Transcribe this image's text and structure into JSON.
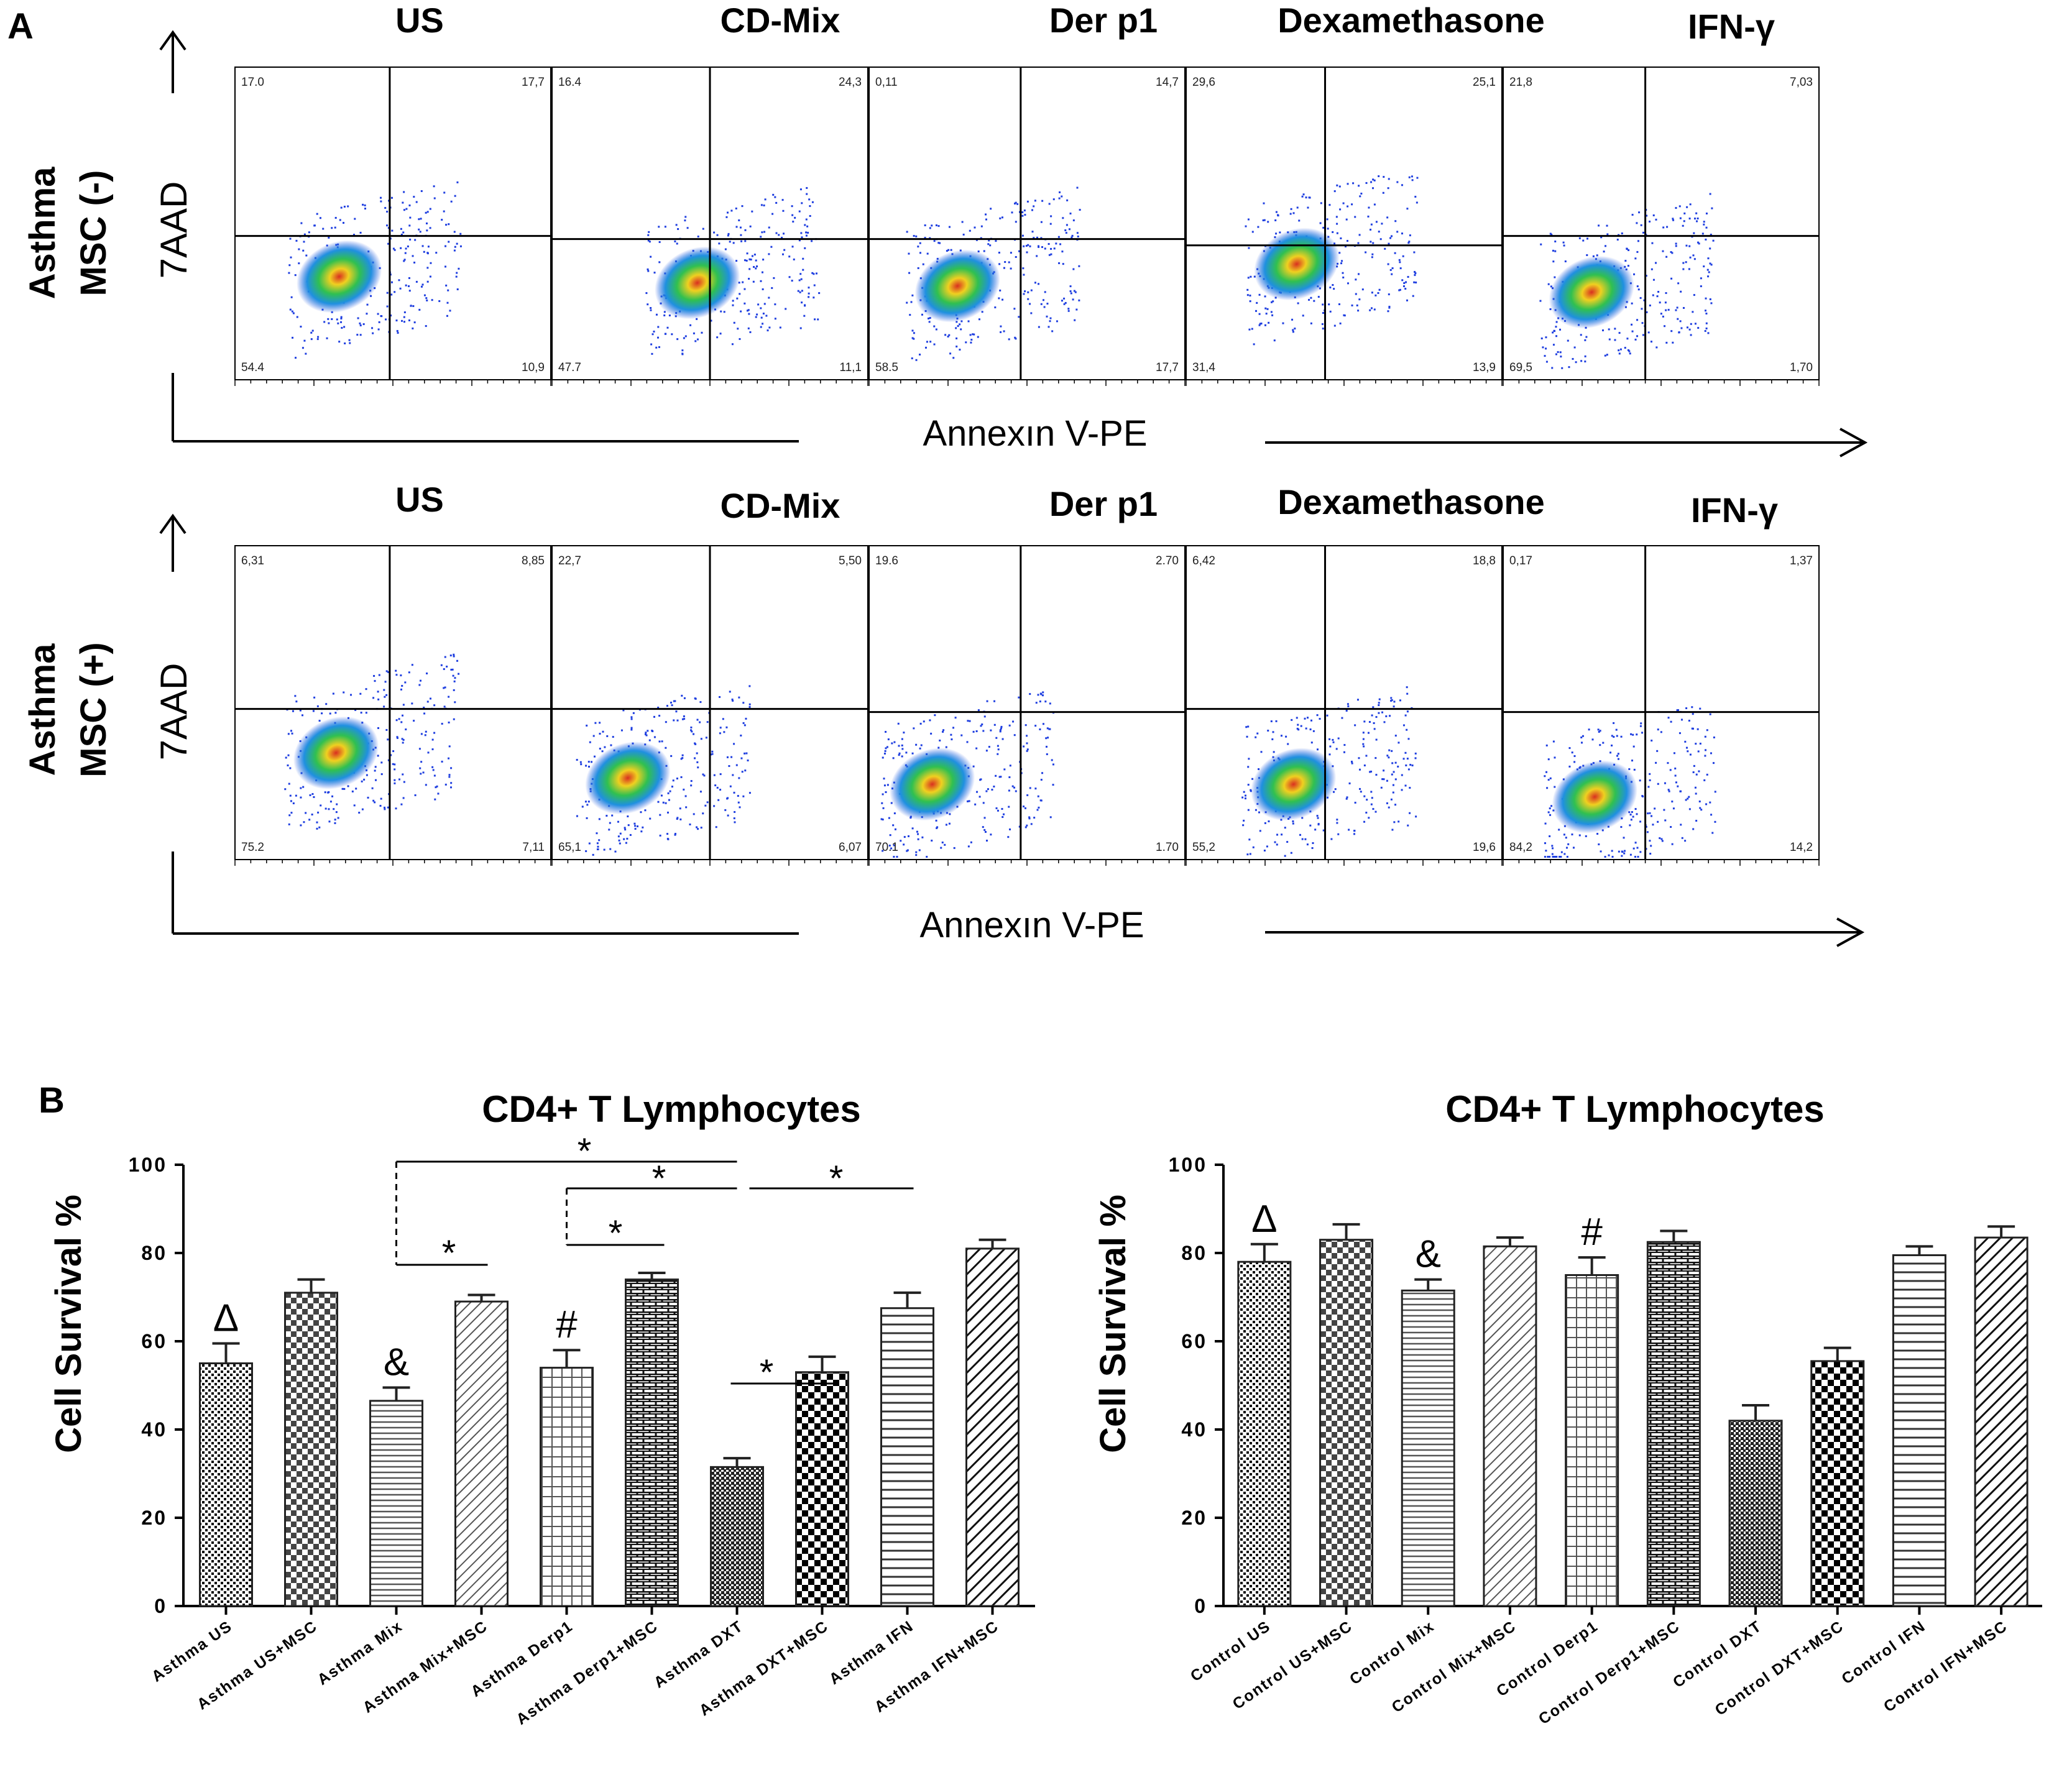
{
  "panel_a": {
    "letter": "A",
    "conditions": [
      "US",
      "CD-Mix",
      "Der p1",
      "Dexamethasone",
      "IFN-γ"
    ],
    "rows": [
      {
        "label_line1": "Asthma",
        "label_line2": "MSC (-)",
        "y_axis_label": "7AAD",
        "x_axis_label": "Annexın V-PE",
        "quadrants": [
          {
            "ul": "17.0",
            "ur": "17,7",
            "ll": "54.4",
            "lr": "10,9"
          },
          {
            "ul": "16.4",
            "ur": "24,3",
            "ll": "47.7",
            "lr": "11,1"
          },
          {
            "ul": "0,11",
            "ur": "14,7",
            "ll": "58.5",
            "lr": "17,7"
          },
          {
            "ul": "29,6",
            "ur": "25,1",
            "ll": "31,4",
            "lr": "13,9"
          },
          {
            "ul": "21,8",
            "ur": "7,03",
            "ll": "69,5",
            "lr": "1,70"
          }
        ]
      },
      {
        "label_line1": "Asthma",
        "label_line2": "MSC (+)",
        "y_axis_label": "7AAD",
        "x_axis_label": "Annexın V-PE",
        "quadrants": [
          {
            "ul": "6,31",
            "ur": "8,85",
            "ll": "75.2",
            "lr": "7,11"
          },
          {
            "ul": "22,7",
            "ur": "5,50",
            "ll": "65,1",
            "lr": "6,07"
          },
          {
            "ul": "19.6",
            "ur": "2.70",
            "ll": "70.1",
            "lr": "1.70"
          },
          {
            "ul": "6,42",
            "ur": "18,8",
            "ll": "55,2",
            "lr": "19,6"
          },
          {
            "ul": "0,17",
            "ur": "1,37",
            "ll": "84,2",
            "lr": "14,2"
          }
        ]
      }
    ]
  },
  "panel_b": {
    "letter": "B"
  },
  "chart_data": [
    {
      "type": "bar",
      "title": "CD4+ T Lymphocytes",
      "ylabel": "Cell Survival %",
      "xlabel": "",
      "ylim": [
        0,
        100
      ],
      "yticks": [
        "0",
        "20",
        "40",
        "60",
        "80",
        "100"
      ],
      "categories": [
        "Asthma US",
        "Asthma US+MSC",
        "Asthma Mix",
        "Asthma Mix+MSC",
        "Asthma Derp1",
        "Asthma Derp1+MSC",
        "Asthma DXT",
        "Asthma DXT+MSC",
        "Asthma IFN",
        "Asthma IFN+MSC"
      ],
      "values": [
        55,
        71,
        46.5,
        69,
        54,
        74,
        31.5,
        53,
        67.5,
        81
      ],
      "errors": [
        4.5,
        3,
        3,
        1.5,
        4,
        1.5,
        2,
        3.5,
        3.5,
        2
      ],
      "bar_markers": [
        "Δ",
        "",
        "&",
        "",
        "#",
        "",
        "",
        "",
        "",
        ""
      ],
      "significance": [
        "*",
        "*",
        "*",
        "*",
        "*",
        "*"
      ]
    },
    {
      "type": "bar",
      "title": "CD4+ T Lymphocytes",
      "ylabel": "Cell Survival %",
      "xlabel": "",
      "ylim": [
        0,
        100
      ],
      "yticks": [
        "0",
        "20",
        "40",
        "60",
        "80",
        "100"
      ],
      "categories": [
        "Control US",
        "Control US+MSC",
        "Control Mix",
        "Control Mix+MSC",
        "Control Derp1",
        "Control Derp1+MSC",
        "Control DXT",
        "Control DXT+MSC",
        "Control IFN",
        "Control IFN+MSC"
      ],
      "values": [
        78,
        83,
        71.5,
        81.5,
        75,
        82.5,
        42,
        55.5,
        79.5,
        83.5
      ],
      "errors": [
        4,
        3.5,
        2.5,
        2,
        4,
        2.5,
        3.5,
        3,
        2,
        2.5
      ],
      "bar_markers": [
        "Δ",
        "",
        "&",
        "",
        "#",
        "",
        "",
        "",
        "",
        ""
      ],
      "significance": []
    }
  ]
}
